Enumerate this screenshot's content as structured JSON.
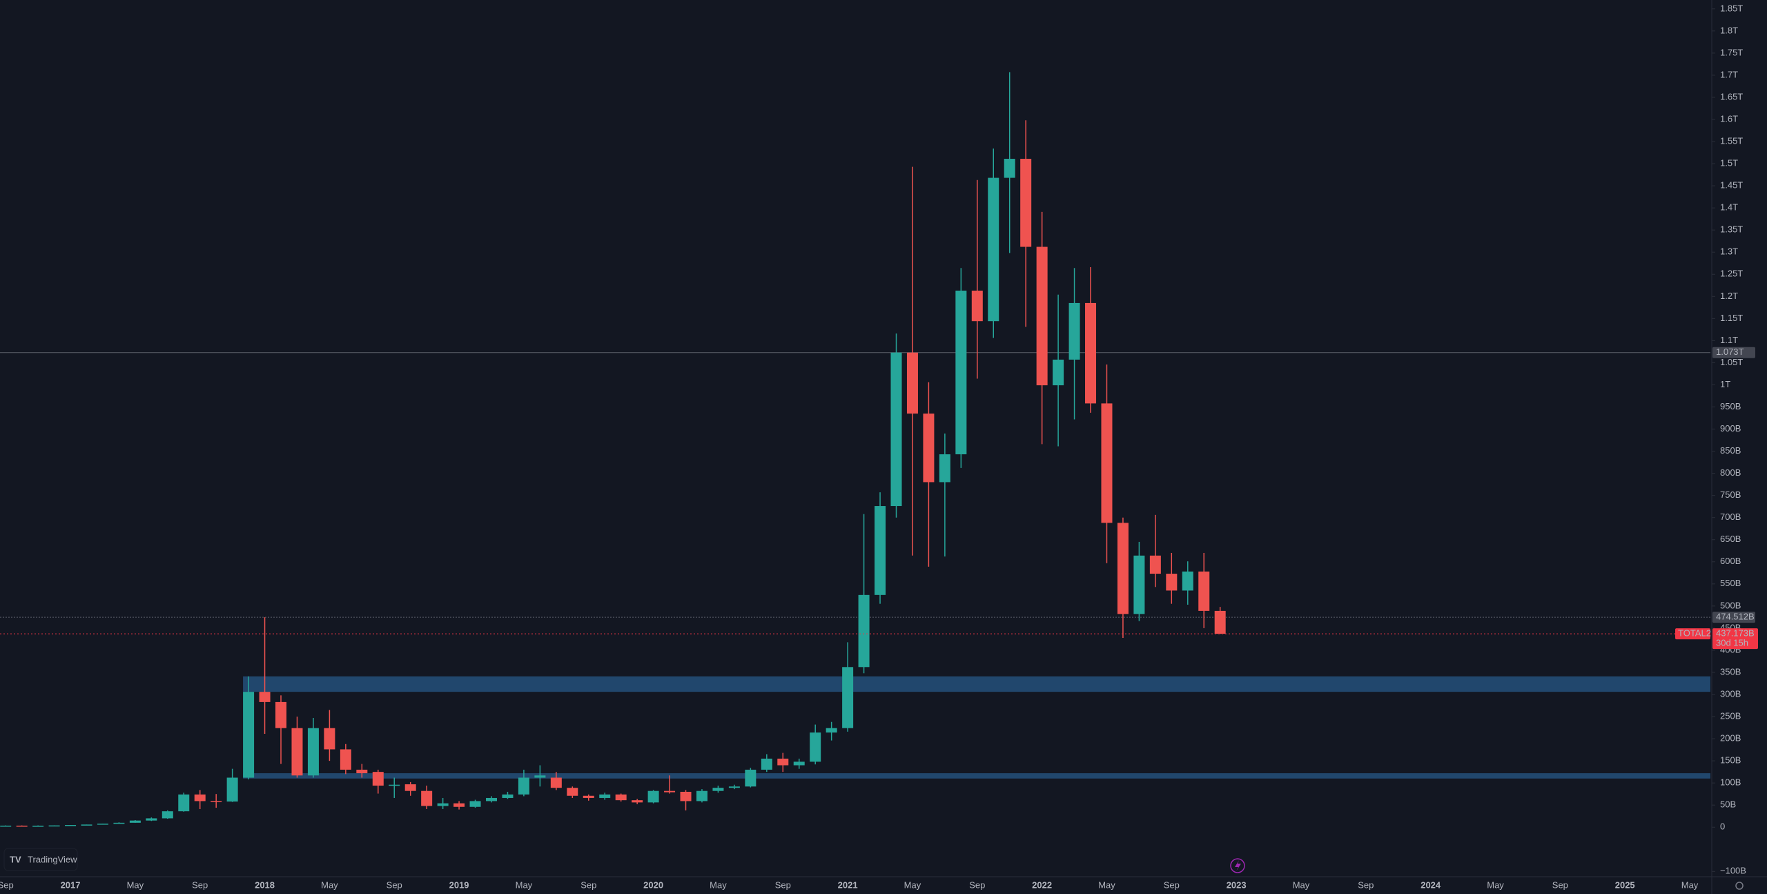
{
  "chart_data": {
    "type": "candlestick",
    "brand": "TradingView",
    "up_color": "#26a69a",
    "down_color": "#ef5350",
    "zone_color": "#234c76",
    "grid": false,
    "categories": [
      "Sep",
      null,
      null,
      null,
      "2017",
      null,
      null,
      null,
      "May",
      null,
      null,
      null,
      "Sep",
      null,
      null,
      null,
      "2018",
      null,
      null,
      null,
      "May",
      null,
      null,
      null,
      "Sep",
      null,
      null,
      null,
      "2019",
      null,
      null,
      null,
      "May",
      null,
      null,
      null,
      "Sep",
      null,
      null,
      null,
      "2020",
      null,
      null,
      null,
      "May",
      null,
      null,
      null,
      "Sep",
      null,
      null,
      null,
      "2021",
      null,
      null,
      null,
      "May",
      null,
      null,
      null,
      "Sep",
      null,
      null,
      null,
      "2022",
      null,
      null,
      null,
      "May",
      null,
      null,
      null,
      "Sep",
      null,
      null,
      null,
      "2023",
      null,
      null,
      null,
      "May",
      null,
      null,
      null,
      "Sep",
      null,
      null,
      null,
      "2024",
      null,
      null,
      null,
      "May",
      null,
      null,
      null,
      "Sep",
      null,
      null,
      null,
      "2025",
      null,
      null,
      null,
      "May"
    ],
    "open": [
      3,
      3.5,
      3,
      3.3,
      4,
      5,
      6,
      8,
      10,
      15,
      20,
      36,
      74,
      59,
      58,
      112,
      306,
      283,
      224,
      117,
      224,
      176,
      130,
      125,
      94,
      97,
      82,
      48,
      54,
      46,
      59,
      66,
      74,
      112,
      112,
      89,
      71,
      66,
      74,
      61,
      56,
      82,
      80,
      59,
      82,
      89,
      92,
      130,
      155,
      140,
      148,
      214,
      224,
      362,
      525,
      726,
      1073,
      935,
      780,
      843,
      1213,
      1144,
      1468,
      1511,
      1312,
      999,
      1057,
      1185,
      958,
      688,
      482,
      614,
      573,
      535,
      578,
      489,
      null,
      null,
      null,
      null,
      null,
      null,
      null,
      null,
      null,
      null,
      null,
      null,
      null,
      null,
      null,
      null,
      null,
      null,
      null,
      null,
      null,
      null,
      null,
      null,
      null,
      null,
      null,
      null,
      null
    ],
    "high": [
      4,
      4,
      4,
      4,
      5,
      6,
      8,
      11,
      16,
      22,
      38,
      78,
      84,
      75,
      132,
      341,
      474.512,
      298,
      250,
      247,
      265,
      188,
      143,
      130,
      112,
      102,
      94,
      66,
      59,
      62,
      70,
      80,
      130,
      140,
      125,
      92,
      74,
      78,
      76,
      64,
      84,
      117,
      84,
      86,
      94,
      96,
      134,
      165,
      168,
      155,
      232,
      238,
      418,
      708,
      757,
      1116,
      1493,
      1006,
      890,
      1264,
      1463,
      1534,
      1707,
      1598,
      1391,
      1204,
      1264,
      1266,
      1046,
      700,
      645,
      706,
      620,
      601,
      620,
      498,
      null,
      null,
      null,
      null,
      null,
      null,
      null,
      null,
      null,
      null,
      null,
      null,
      null,
      null,
      null,
      null,
      null,
      null,
      null,
      null,
      null,
      null,
      null,
      null,
      null,
      null,
      null,
      null,
      null
    ],
    "low": [
      3,
      3,
      3,
      3,
      4,
      5,
      6,
      8,
      10,
      14,
      19,
      35,
      41,
      44,
      57,
      108,
      211,
      143,
      112,
      112,
      150,
      120,
      112,
      76,
      66,
      71,
      41,
      41,
      40,
      44,
      56,
      64,
      70,
      92,
      84,
      66,
      60,
      62,
      58,
      52,
      54,
      76,
      38,
      56,
      78,
      86,
      90,
      125,
      125,
      132,
      142,
      196,
      216,
      348,
      505,
      700,
      614,
      589,
      612,
      812,
      1014,
      1106,
      1298,
      1131,
      866,
      861,
      922,
      937,
      597,
      428,
      466,
      543,
      505,
      503,
      450,
      437,
      null,
      null,
      null,
      null,
      null,
      null,
      null,
      null,
      null,
      null,
      null,
      null,
      null,
      null,
      null,
      null,
      null,
      null,
      null,
      null,
      null,
      null,
      null,
      null,
      null,
      null,
      null,
      null,
      null
    ],
    "close": [
      3.5,
      3,
      3.3,
      4,
      5,
      6,
      8,
      10,
      15,
      20,
      36,
      74,
      59,
      58,
      112,
      306,
      283,
      224,
      117,
      224,
      176,
      130,
      122,
      94,
      96,
      82,
      48,
      54,
      46,
      59,
      66,
      74,
      112,
      117,
      89,
      71,
      66,
      74,
      61,
      56,
      82,
      79,
      59,
      82,
      89,
      92,
      130,
      155,
      140,
      148,
      214,
      224,
      362,
      525,
      726,
      1073,
      935,
      780,
      843,
      1213,
      1144,
      1468,
      1511,
      1312,
      999,
      1057,
      1185,
      958,
      688,
      482,
      614,
      573,
      535,
      578,
      489,
      437.173,
      null,
      null,
      null,
      null,
      null,
      null,
      null,
      null,
      null,
      null,
      null,
      null,
      null,
      null,
      null,
      null,
      null,
      null,
      null,
      null,
      null,
      null,
      null,
      null,
      null,
      null,
      null,
      null,
      null
    ],
    "zones": [
      {
        "from": 306,
        "to": 341
      },
      {
        "from": 110,
        "to": 122
      }
    ],
    "price_lines": [
      {
        "value": 1073,
        "label": "1.073T",
        "color": "#5d606b"
      },
      {
        "value": 474.512,
        "label": "474.512B",
        "color": "#5d606b"
      }
    ],
    "last_price": {
      "symbol": "TOTAL2",
      "value": 437.173,
      "label": "437.173B",
      "countdown": "30d 15h",
      "color": "#f23645"
    },
    "ylim": [
      -112,
      1870
    ],
    "yticks": [
      {
        "value": -100,
        "label": "−100B"
      },
      0,
      {
        "value": 50,
        "label": "50B"
      },
      {
        "value": 100,
        "label": "100B"
      },
      {
        "value": 150,
        "label": "150B"
      },
      {
        "value": 200,
        "label": "200B"
      },
      {
        "value": 250,
        "label": "250B"
      },
      {
        "value": 300,
        "label": "300B"
      },
      {
        "value": 350,
        "label": "350B"
      },
      {
        "value": 400,
        "label": "400B"
      },
      {
        "value": 450,
        "label": "450B"
      },
      {
        "value": 500,
        "label": "500B"
      },
      {
        "value": 550,
        "label": "550B"
      },
      {
        "value": 600,
        "label": "600B"
      },
      {
        "value": 650,
        "label": "650B"
      },
      {
        "value": 700,
        "label": "700B"
      },
      {
        "value": 750,
        "label": "750B"
      },
      {
        "value": 800,
        "label": "800B"
      },
      {
        "value": 850,
        "label": "850B"
      },
      {
        "value": 900,
        "label": "900B"
      },
      {
        "value": 950,
        "label": "950B"
      },
      {
        "value": 1000,
        "label": "1T"
      },
      {
        "value": 1050,
        "label": "1.05T"
      },
      {
        "value": 1100,
        "label": "1.1T"
      },
      {
        "value": 1150,
        "label": "1.15T"
      },
      {
        "value": 1200,
        "label": "1.2T"
      },
      {
        "value": 1250,
        "label": "1.25T"
      },
      {
        "value": 1300,
        "label": "1.3T"
      },
      {
        "value": 1350,
        "label": "1.35T"
      },
      {
        "value": 1400,
        "label": "1.4T"
      },
      {
        "value": 1450,
        "label": "1.45T"
      },
      {
        "value": 1500,
        "label": "1.5T"
      },
      {
        "value": 1550,
        "label": "1.55T"
      },
      {
        "value": 1600,
        "label": "1.6T"
      },
      {
        "value": 1650,
        "label": "1.65T"
      },
      {
        "value": 1700,
        "label": "1.7T"
      },
      {
        "value": 1750,
        "label": "1.75T"
      },
      {
        "value": 1800,
        "label": "1.8T"
      },
      {
        "value": 1850,
        "label": "1.85T"
      }
    ]
  }
}
